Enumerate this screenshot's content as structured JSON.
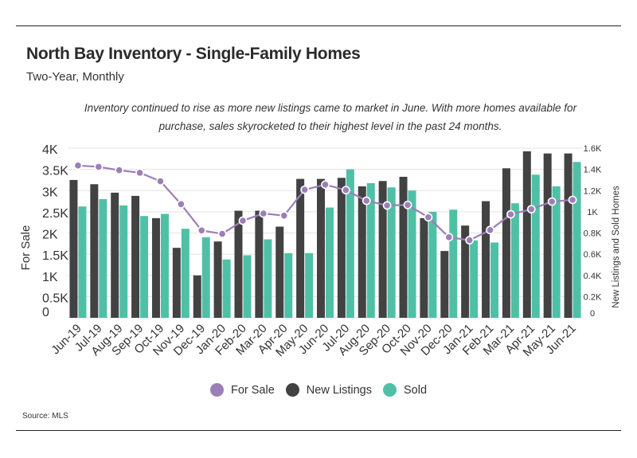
{
  "header": {
    "title": "North Bay Inventory - Single-Family Homes",
    "subtitle": "Two-Year, Monthly",
    "annotation": "Inventory continued to rise as more new listings came to market in June. With more homes available for purchase, sales skyrocketed to their highest level in the past 24 months."
  },
  "footer": {
    "source": "Source:  MLS"
  },
  "colors": {
    "for_sale": "#9c7fb8",
    "new_listings": "#424242",
    "sold": "#4fc0a6"
  },
  "chart_data": {
    "type": "bar",
    "categories": [
      "Jun-19",
      "Jul-19",
      "Aug-19",
      "Sep-19",
      "Oct-19",
      "Nov-19",
      "Dec-19",
      "Jan-20",
      "Feb-20",
      "Mar-20",
      "Apr-20",
      "May-20",
      "Jun-20",
      "Jul-20",
      "Aug-20",
      "Sep-20",
      "Oct-20",
      "Nov-20",
      "Dec-20",
      "Jan-21",
      "Feb-21",
      "Mar-21",
      "Apr-21",
      "May-21",
      "Jun-21"
    ],
    "series": [
      {
        "name": "For Sale",
        "type": "line",
        "axis": "left",
        "values": [
          3590,
          3560,
          3480,
          3420,
          3220,
          2680,
          2060,
          1980,
          2290,
          2460,
          2410,
          3020,
          3140,
          3010,
          2760,
          2650,
          2660,
          2370,
          1900,
          1830,
          2070,
          2440,
          2560,
          2740,
          2780
        ]
      },
      {
        "name": "New Listings",
        "type": "bar",
        "axis": "right",
        "values": [
          1300,
          1260,
          1180,
          1150,
          940,
          660,
          400,
          720,
          1010,
          1010,
          860,
          1310,
          1310,
          1320,
          1240,
          1290,
          1330,
          940,
          630,
          870,
          1100,
          1410,
          1570,
          1550,
          1550
        ]
      },
      {
        "name": "Sold",
        "type": "bar",
        "axis": "right",
        "values": [
          1050,
          1120,
          1060,
          960,
          980,
          840,
          760,
          550,
          590,
          740,
          610,
          610,
          1040,
          1400,
          1270,
          1230,
          1200,
          1000,
          1020,
          730,
          710,
          1080,
          1350,
          1240,
          1470
        ]
      }
    ],
    "y_left": {
      "label": "For Sale",
      "range": [
        0,
        4000
      ],
      "ticks": [
        "0",
        "0.5K",
        "1K",
        "1.5K",
        "2K",
        "2.5K",
        "3K",
        "3.5K",
        "4K"
      ]
    },
    "y_right": {
      "label": "New Listings and Sold Homes",
      "range": [
        0,
        1600
      ],
      "ticks": [
        "0",
        "0.2K",
        "0.4K",
        "0.6K",
        "0.8K",
        "1K",
        "1.2K",
        "1.4K",
        "1.6K"
      ]
    },
    "grid": true,
    "legend_position": "bottom-center"
  }
}
